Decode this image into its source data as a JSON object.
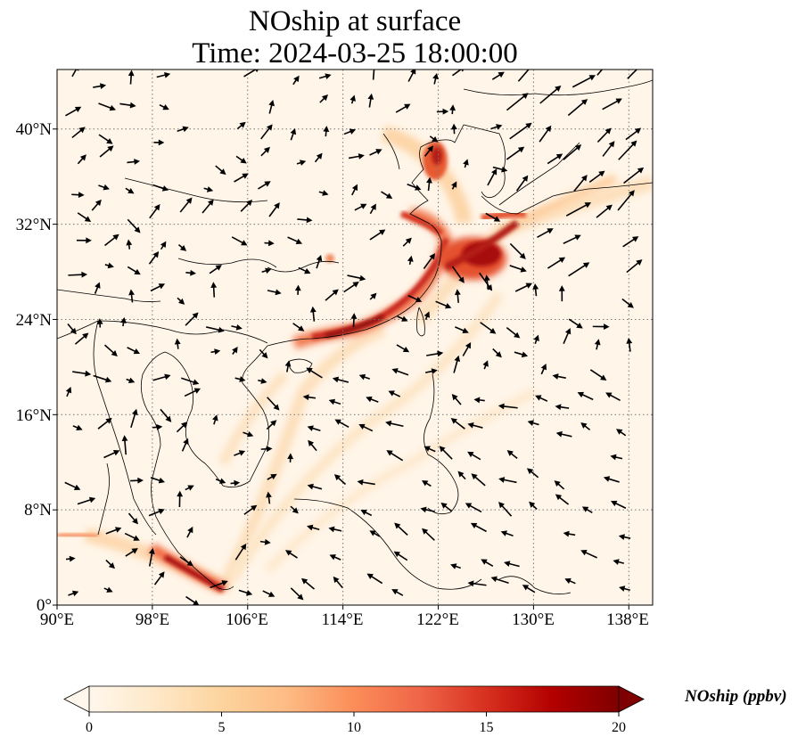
{
  "title": {
    "line1": "NOship at surface",
    "line2": "Time: 2024-03-25 18:00:00"
  },
  "map": {
    "projection": "PlateCarree",
    "extent_lon": [
      90,
      140
    ],
    "extent_lat": [
      0,
      45
    ],
    "x_ticks": [
      {
        "value": 90,
        "label": "90°E"
      },
      {
        "value": 98,
        "label": "98°E"
      },
      {
        "value": 106,
        "label": "106°E"
      },
      {
        "value": 114,
        "label": "114°E"
      },
      {
        "value": 122,
        "label": "122°E"
      },
      {
        "value": 130,
        "label": "130°E"
      },
      {
        "value": 138,
        "label": "138°E"
      }
    ],
    "y_ticks": [
      {
        "value": 0,
        "label": "0°"
      },
      {
        "value": 8,
        "label": "8°N"
      },
      {
        "value": 16,
        "label": "16°N"
      },
      {
        "value": 24,
        "label": "24°N"
      },
      {
        "value": 32,
        "label": "32°N"
      },
      {
        "value": 40,
        "label": "40°N"
      }
    ],
    "gridlines": "dotted",
    "background_color": "#fff5e8",
    "coastline_color": "#000000",
    "wind_vectors": "black arrows"
  },
  "colorbar": {
    "label": "NOship (ppbv)",
    "ticks": [
      0,
      5,
      10,
      15,
      20
    ],
    "min": 0,
    "max": 20,
    "extend": "both",
    "colormap": "OrRd",
    "colors": [
      "#fff7ec",
      "#fee8c8",
      "#fdd49e",
      "#fdbb84",
      "#fc8d59",
      "#ef6548",
      "#d7301f",
      "#b30000",
      "#7f0000"
    ]
  }
}
